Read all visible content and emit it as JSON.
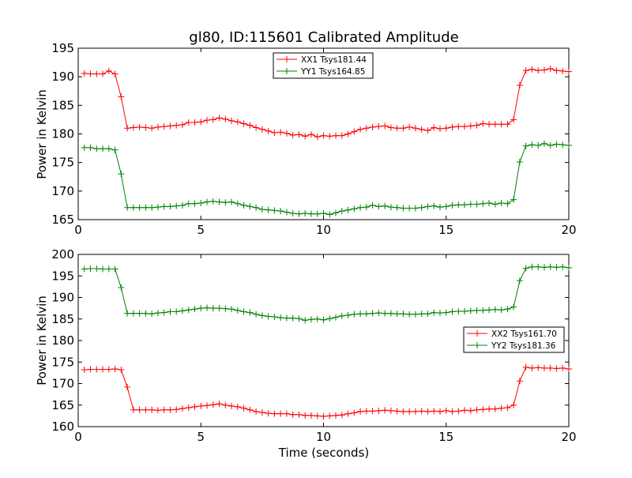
{
  "chart_data": [
    {
      "type": "line",
      "title": "gl80, ID:115601 Calibrated Amplitude",
      "xlabel": "",
      "ylabel": "Power in Kelvin",
      "xlim": [
        0,
        20
      ],
      "ylim": [
        165,
        195
      ],
      "xticks": [
        "0",
        "5",
        "10",
        "15",
        "20"
      ],
      "yticks": [
        "165",
        "170",
        "175",
        "180",
        "185",
        "190",
        "195"
      ],
      "legend_position": "top-center",
      "grid": false,
      "x": [
        0.25,
        0.5,
        0.75,
        1.0,
        1.25,
        1.5,
        1.75,
        2.0,
        2.25,
        2.5,
        2.75,
        3.0,
        3.25,
        3.5,
        3.75,
        4.0,
        4.25,
        4.5,
        4.75,
        5.0,
        5.25,
        5.5,
        5.75,
        6.0,
        6.25,
        6.5,
        6.75,
        7.0,
        7.25,
        7.5,
        7.75,
        8.0,
        8.25,
        8.5,
        8.75,
        9.0,
        9.25,
        9.5,
        9.75,
        10.0,
        10.25,
        10.5,
        10.75,
        11.0,
        11.25,
        11.5,
        11.75,
        12.0,
        12.25,
        12.5,
        12.75,
        13.0,
        13.25,
        13.5,
        13.75,
        14.0,
        14.25,
        14.5,
        14.75,
        15.0,
        15.25,
        15.5,
        15.75,
        16.0,
        16.25,
        16.5,
        16.75,
        17.0,
        17.25,
        17.5,
        17.75,
        18.0,
        18.25,
        18.5,
        18.75,
        19.0,
        19.25,
        19.5,
        19.75,
        20.0
      ],
      "series": [
        {
          "name": "XX1 Tsys181.44",
          "color": "#ff0000",
          "values": [
            190.6,
            190.5,
            190.5,
            190.5,
            191.0,
            190.5,
            186.5,
            181.0,
            181.1,
            181.2,
            181.1,
            181.0,
            181.2,
            181.3,
            181.4,
            181.5,
            181.6,
            182.0,
            182.0,
            182.1,
            182.4,
            182.5,
            182.8,
            182.6,
            182.3,
            182.1,
            181.8,
            181.5,
            181.1,
            180.8,
            180.5,
            180.2,
            180.3,
            180.1,
            179.8,
            179.9,
            179.6,
            179.9,
            179.5,
            179.7,
            179.6,
            179.7,
            179.7,
            180.0,
            180.4,
            180.8,
            181.0,
            181.2,
            181.3,
            181.4,
            181.1,
            181.0,
            181.0,
            181.2,
            181.0,
            180.8,
            180.6,
            181.1,
            180.9,
            181.0,
            181.2,
            181.3,
            181.3,
            181.4,
            181.5,
            181.8,
            181.7,
            181.7,
            181.7,
            181.7,
            182.5,
            188.5,
            191.1,
            191.3,
            191.1,
            191.2,
            191.4,
            191.1,
            191.0,
            190.9
          ]
        },
        {
          "name": "YY1 Tsys164.85",
          "color": "#008000",
          "values": [
            177.6,
            177.6,
            177.4,
            177.4,
            177.4,
            177.2,
            173.0,
            167.1,
            167.1,
            167.1,
            167.1,
            167.1,
            167.2,
            167.3,
            167.3,
            167.4,
            167.5,
            167.8,
            167.8,
            167.9,
            168.1,
            168.2,
            168.1,
            168.0,
            168.1,
            167.8,
            167.5,
            167.3,
            167.1,
            166.8,
            166.7,
            166.6,
            166.5,
            166.3,
            166.1,
            166.0,
            166.1,
            166.0,
            166.0,
            166.1,
            165.9,
            166.2,
            166.5,
            166.7,
            166.9,
            167.1,
            167.2,
            167.5,
            167.3,
            167.4,
            167.2,
            167.1,
            167.0,
            167.0,
            167.0,
            167.1,
            167.3,
            167.4,
            167.2,
            167.3,
            167.5,
            167.6,
            167.6,
            167.7,
            167.7,
            167.8,
            167.9,
            167.7,
            167.9,
            167.8,
            168.5,
            175.1,
            177.9,
            178.1,
            178.0,
            178.3,
            178.0,
            178.2,
            178.1,
            178.0
          ]
        }
      ]
    },
    {
      "type": "line",
      "title": "",
      "xlabel": "Time (seconds)",
      "ylabel": "Power in Kelvin",
      "xlim": [
        0,
        20
      ],
      "ylim": [
        160,
        200
      ],
      "xticks": [
        "0",
        "5",
        "10",
        "15",
        "20"
      ],
      "yticks": [
        "160",
        "165",
        "170",
        "175",
        "180",
        "185",
        "190",
        "195",
        "200"
      ],
      "legend_position": "center-right",
      "grid": false,
      "x": [
        0.25,
        0.5,
        0.75,
        1.0,
        1.25,
        1.5,
        1.75,
        2.0,
        2.25,
        2.5,
        2.75,
        3.0,
        3.25,
        3.5,
        3.75,
        4.0,
        4.25,
        4.5,
        4.75,
        5.0,
        5.25,
        5.5,
        5.75,
        6.0,
        6.25,
        6.5,
        6.75,
        7.0,
        7.25,
        7.5,
        7.75,
        8.0,
        8.25,
        8.5,
        8.75,
        9.0,
        9.25,
        9.5,
        9.75,
        10.0,
        10.25,
        10.5,
        10.75,
        11.0,
        11.25,
        11.5,
        11.75,
        12.0,
        12.25,
        12.5,
        12.75,
        13.0,
        13.25,
        13.5,
        13.75,
        14.0,
        14.25,
        14.5,
        14.75,
        15.0,
        15.25,
        15.5,
        15.75,
        16.0,
        16.25,
        16.5,
        16.75,
        17.0,
        17.25,
        17.5,
        17.75,
        18.0,
        18.25,
        18.5,
        18.75,
        19.0,
        19.25,
        19.5,
        19.75,
        20.0
      ],
      "series": [
        {
          "name": "XX2 Tsys161.70",
          "color": "#ff0000",
          "values": [
            173.2,
            173.3,
            173.3,
            173.3,
            173.3,
            173.4,
            173.2,
            169.2,
            163.9,
            163.9,
            163.9,
            163.9,
            163.8,
            163.9,
            163.9,
            164.0,
            164.2,
            164.4,
            164.6,
            164.8,
            164.9,
            165.1,
            165.3,
            165.0,
            164.8,
            164.6,
            164.3,
            163.9,
            163.5,
            163.3,
            163.1,
            163.0,
            163.0,
            163.0,
            162.8,
            162.8,
            162.6,
            162.6,
            162.5,
            162.4,
            162.5,
            162.6,
            162.7,
            163.0,
            163.2,
            163.5,
            163.6,
            163.6,
            163.7,
            163.8,
            163.7,
            163.6,
            163.5,
            163.5,
            163.5,
            163.6,
            163.5,
            163.6,
            163.5,
            163.7,
            163.5,
            163.6,
            163.8,
            163.7,
            163.9,
            164.0,
            164.1,
            164.1,
            164.3,
            164.4,
            165.0,
            170.6,
            173.8,
            173.6,
            173.7,
            173.6,
            173.6,
            173.5,
            173.6,
            173.4
          ]
        },
        {
          "name": "YY2 Tsys181.36",
          "color": "#008000",
          "values": [
            196.6,
            196.7,
            196.7,
            196.6,
            196.6,
            196.6,
            192.3,
            186.3,
            186.3,
            186.3,
            186.3,
            186.2,
            186.4,
            186.5,
            186.7,
            186.7,
            186.9,
            187.1,
            187.3,
            187.5,
            187.6,
            187.5,
            187.5,
            187.4,
            187.3,
            187.0,
            186.7,
            186.5,
            186.1,
            185.8,
            185.6,
            185.5,
            185.3,
            185.2,
            185.2,
            185.1,
            184.7,
            184.9,
            185.0,
            184.8,
            185.1,
            185.4,
            185.7,
            185.9,
            186.1,
            186.2,
            186.2,
            186.3,
            186.4,
            186.3,
            186.3,
            186.2,
            186.2,
            186.1,
            186.1,
            186.2,
            186.2,
            186.5,
            186.4,
            186.5,
            186.7,
            186.8,
            186.8,
            186.9,
            187.0,
            187.0,
            187.1,
            187.2,
            187.1,
            187.3,
            187.8,
            193.9,
            196.8,
            197.1,
            197.1,
            197.0,
            197.1,
            197.0,
            197.1,
            196.9
          ]
        }
      ]
    }
  ]
}
